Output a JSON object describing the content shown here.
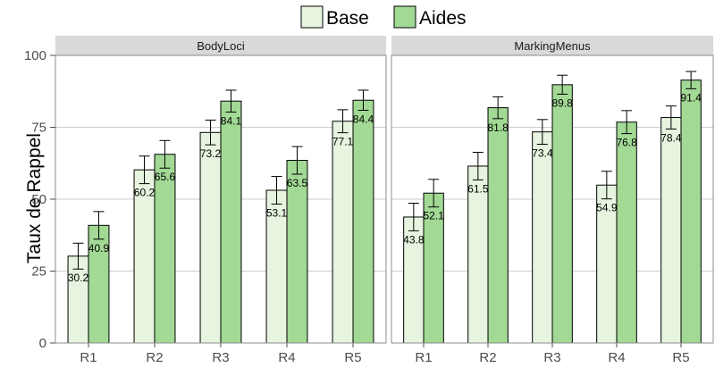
{
  "colors": {
    "base": "#e7f5e0",
    "aides": "#a2d995",
    "strip": "#d9d9d9",
    "grid": "#cccccc",
    "border": "#8c8c8c"
  },
  "chart_data": {
    "type": "bar",
    "ylabel": "Taux de Rappel",
    "ylim": [
      0,
      100
    ],
    "yticks": [
      0,
      25,
      50,
      75,
      100
    ],
    "legend": {
      "position": "top",
      "entries": [
        "Base",
        "Aides"
      ]
    },
    "grid": true,
    "panels": [
      {
        "title": "BodyLoci",
        "categories": [
          "R1",
          "R2",
          "R3",
          "R4",
          "R5"
        ],
        "series": [
          {
            "name": "Base",
            "values": [
              30.2,
              60.2,
              73.2,
              53.1,
              77.1
            ],
            "error": [
              4.5,
              4.8,
              4.3,
              4.8,
              4.0
            ]
          },
          {
            "name": "Aides",
            "values": [
              40.9,
              65.6,
              84.1,
              63.5,
              84.4
            ],
            "error": [
              4.8,
              4.8,
              3.8,
              4.8,
              3.5
            ]
          }
        ]
      },
      {
        "title": "MarkingMenus",
        "categories": [
          "R1",
          "R2",
          "R3",
          "R4",
          "R5"
        ],
        "series": [
          {
            "name": "Base",
            "values": [
              43.8,
              61.5,
              73.4,
              54.9,
              78.4
            ],
            "error": [
              4.8,
              4.8,
              4.3,
              4.8,
              4.0
            ]
          },
          {
            "name": "Aides",
            "values": [
              52.1,
              81.8,
              89.8,
              76.8,
              91.4
            ],
            "error": [
              4.8,
              3.8,
              3.3,
              4.0,
              3.0
            ]
          }
        ]
      }
    ]
  }
}
